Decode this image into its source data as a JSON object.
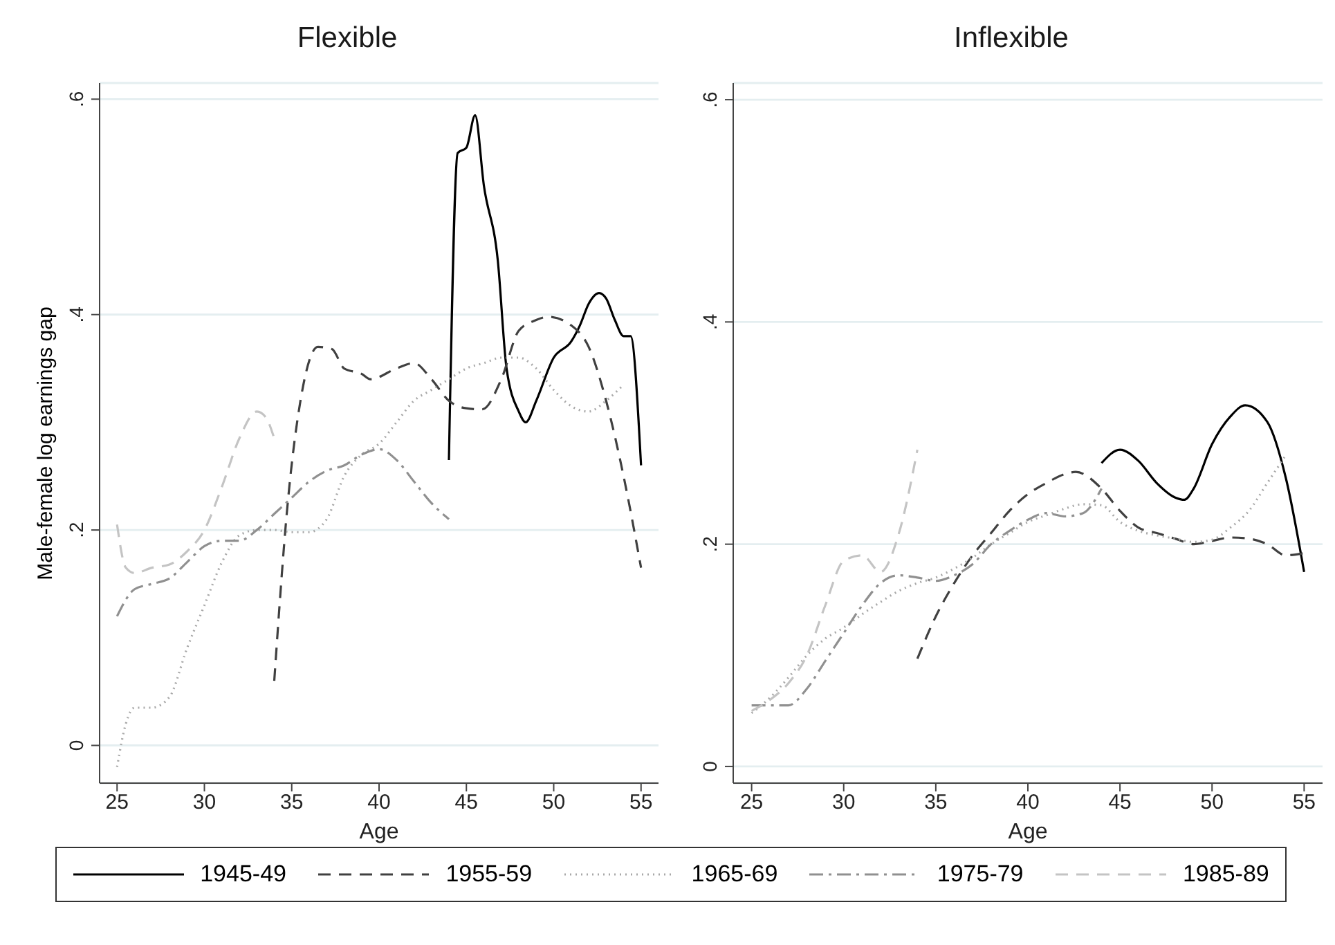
{
  "chart_data": [
    {
      "type": "line",
      "title": "Flexible",
      "xlabel": "Age",
      "ylabel": "Male-female log earnings gap",
      "xlim": [
        24,
        56
      ],
      "xticks": [
        25,
        30,
        35,
        40,
        45,
        50,
        55
      ],
      "ylim": [
        -0.035,
        0.615
      ],
      "yticks": [
        {
          "value": 0,
          "label": "0"
        },
        {
          "value": 0.2,
          "label": ".2"
        },
        {
          "value": 0.4,
          "label": ".4"
        },
        {
          "value": 0.6,
          "label": ".6"
        }
      ],
      "grid": "y",
      "legend": "bottom",
      "marker": "none",
      "series": [
        {
          "name": "1945-49",
          "color": "#000000",
          "line_style": "solid",
          "x": [
            44,
            44.5,
            45,
            45.5,
            46,
            46.8,
            47.3,
            48,
            48.4,
            49,
            50,
            51,
            51.5,
            52,
            52.6,
            53,
            53.5,
            54,
            54.4,
            55
          ],
          "values": [
            0.265,
            0.55,
            0.555,
            0.585,
            0.52,
            0.45,
            0.35,
            0.31,
            0.3,
            0.32,
            0.36,
            0.375,
            0.39,
            0.41,
            0.42,
            0.415,
            0.395,
            0.38,
            0.38,
            0.26
          ]
        },
        {
          "name": "1955-59",
          "color": "#404040",
          "line_style": "dashed",
          "x": [
            34,
            34.8,
            35.5,
            36.5,
            37.3,
            38,
            39,
            39.5,
            41,
            42,
            43,
            44,
            45,
            45.9,
            47,
            48,
            49,
            49.7,
            51,
            52,
            53,
            54,
            55
          ],
          "values": [
            0.06,
            0.23,
            0.32,
            0.37,
            0.368,
            0.35,
            0.345,
            0.34,
            0.35,
            0.355,
            0.34,
            0.32,
            0.313,
            0.312,
            0.34,
            0.385,
            0.395,
            0.398,
            0.39,
            0.37,
            0.32,
            0.25,
            0.165
          ]
        },
        {
          "name": "1965-69",
          "color": "#a8a8a8",
          "line_style": "dotted",
          "x": [
            25,
            25.5,
            26,
            27,
            28,
            29,
            30,
            31,
            32,
            33,
            34,
            35,
            36,
            37,
            38,
            39,
            40,
            41,
            42,
            43,
            44,
            45,
            46,
            47,
            48,
            49,
            50,
            51,
            52,
            53,
            54
          ],
          "values": [
            -0.02,
            0.02,
            0.035,
            0.035,
            0.045,
            0.09,
            0.13,
            0.17,
            0.195,
            0.2,
            0.2,
            0.198,
            0.198,
            0.21,
            0.25,
            0.27,
            0.28,
            0.3,
            0.32,
            0.33,
            0.34,
            0.35,
            0.355,
            0.36,
            0.36,
            0.35,
            0.33,
            0.315,
            0.31,
            0.32,
            0.335
          ]
        },
        {
          "name": "1975-79",
          "color": "#909090",
          "line_style": "dashdot",
          "x": [
            25,
            26,
            27,
            28,
            29,
            30,
            31,
            32,
            33,
            34,
            35,
            36,
            37,
            38,
            39,
            40,
            41,
            42,
            43,
            44
          ],
          "values": [
            0.12,
            0.145,
            0.15,
            0.155,
            0.17,
            0.185,
            0.19,
            0.19,
            0.2,
            0.215,
            0.23,
            0.245,
            0.255,
            0.26,
            0.27,
            0.275,
            0.265,
            0.245,
            0.225,
            0.21
          ]
        },
        {
          "name": "1985-89",
          "color": "#c4c4c4",
          "line_style": "dashed",
          "x": [
            25,
            25.5,
            26,
            27,
            28,
            29,
            30,
            31,
            32,
            33,
            33.5,
            34
          ],
          "values": [
            0.205,
            0.165,
            0.16,
            0.165,
            0.168,
            0.18,
            0.2,
            0.24,
            0.285,
            0.31,
            0.305,
            0.285
          ]
        }
      ]
    },
    {
      "type": "line",
      "title": "Inflexible",
      "xlabel": "Age",
      "xlim": [
        24,
        56
      ],
      "xticks": [
        25,
        30,
        35,
        40,
        45,
        50,
        55
      ],
      "ylim": [
        -0.015,
        0.615
      ],
      "yticks": [
        {
          "value": 0,
          "label": "0"
        },
        {
          "value": 0.2,
          "label": ".2"
        },
        {
          "value": 0.4,
          "label": ".4"
        },
        {
          "value": 0.6,
          "label": ".6"
        }
      ],
      "grid": "y",
      "marker": "none",
      "series": [
        {
          "name": "1945-49",
          "color": "#000000",
          "line_style": "solid",
          "x": [
            44,
            45,
            46,
            47,
            48,
            48.5,
            49,
            50,
            51,
            51.8,
            53,
            54,
            55
          ],
          "values": [
            0.273,
            0.285,
            0.275,
            0.255,
            0.242,
            0.24,
            0.25,
            0.29,
            0.315,
            0.325,
            0.31,
            0.26,
            0.175
          ]
        },
        {
          "name": "1955-59",
          "color": "#404040",
          "line_style": "dashed",
          "x": [
            34,
            35,
            36,
            37,
            38,
            39,
            40,
            41,
            42,
            42.6,
            44,
            45,
            46,
            47,
            48,
            49,
            50,
            51,
            52,
            53,
            54,
            55
          ],
          "values": [
            0.097,
            0.135,
            0.165,
            0.19,
            0.21,
            0.23,
            0.245,
            0.255,
            0.263,
            0.265,
            0.25,
            0.23,
            0.215,
            0.21,
            0.205,
            0.2,
            0.203,
            0.206,
            0.205,
            0.2,
            0.19,
            0.192
          ]
        },
        {
          "name": "1965-69",
          "color": "#a8a8a8",
          "line_style": "dotted",
          "x": [
            25,
            26,
            27,
            28,
            29,
            30,
            31,
            32,
            33,
            34,
            35,
            36,
            37,
            38,
            39,
            40,
            41,
            42,
            43,
            44,
            45,
            46,
            47,
            48,
            49,
            50,
            51,
            52,
            53,
            54
          ],
          "values": [
            0.048,
            0.062,
            0.08,
            0.1,
            0.115,
            0.125,
            0.137,
            0.148,
            0.158,
            0.165,
            0.17,
            0.178,
            0.188,
            0.2,
            0.21,
            0.22,
            0.226,
            0.232,
            0.236,
            0.235,
            0.22,
            0.212,
            0.208,
            0.205,
            0.202,
            0.204,
            0.215,
            0.23,
            0.255,
            0.28
          ]
        },
        {
          "name": "1975-79",
          "color": "#909090",
          "line_style": "dashdot",
          "x": [
            25,
            26,
            27,
            28,
            29,
            30,
            31,
            32,
            33,
            34,
            35,
            36,
            37,
            38,
            39,
            40,
            41,
            42,
            43,
            44
          ],
          "values": [
            0.055,
            0.055,
            0.055,
            0.07,
            0.095,
            0.12,
            0.145,
            0.165,
            0.172,
            0.17,
            0.167,
            0.172,
            0.182,
            0.2,
            0.212,
            0.222,
            0.228,
            0.225,
            0.228,
            0.25
          ]
        },
        {
          "name": "1985-89",
          "color": "#c4c4c4",
          "line_style": "dashed",
          "x": [
            25,
            26,
            27,
            28,
            29,
            30,
            31,
            32,
            33,
            34
          ],
          "values": [
            0.05,
            0.06,
            0.075,
            0.1,
            0.145,
            0.185,
            0.19,
            0.175,
            0.21,
            0.285
          ]
        }
      ]
    }
  ]
}
